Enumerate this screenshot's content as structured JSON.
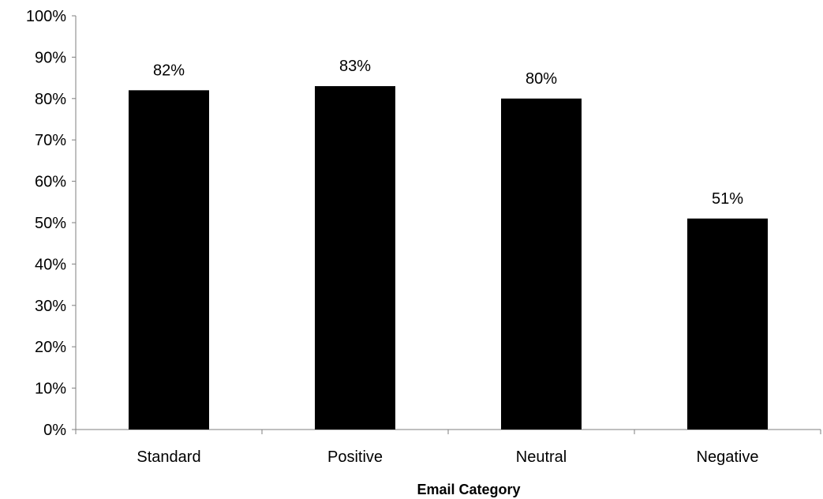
{
  "chart_data": {
    "type": "bar",
    "title": "",
    "xlabel": "Email Category",
    "ylabel": "",
    "categories": [
      "Standard",
      "Positive",
      "Neutral",
      "Negative"
    ],
    "values": [
      82,
      83,
      80,
      51
    ],
    "data_labels": [
      "82%",
      "83%",
      "80%",
      "51%"
    ],
    "ylim": [
      0,
      100
    ],
    "yticks": [
      0,
      10,
      20,
      30,
      40,
      50,
      60,
      70,
      80,
      90,
      100
    ],
    "ytick_labels": [
      "0%",
      "10%",
      "20%",
      "30%",
      "40%",
      "50%",
      "60%",
      "70%",
      "80%",
      "90%",
      "100%"
    ],
    "grid": false,
    "legend": "none",
    "bar_color": "#000000"
  }
}
